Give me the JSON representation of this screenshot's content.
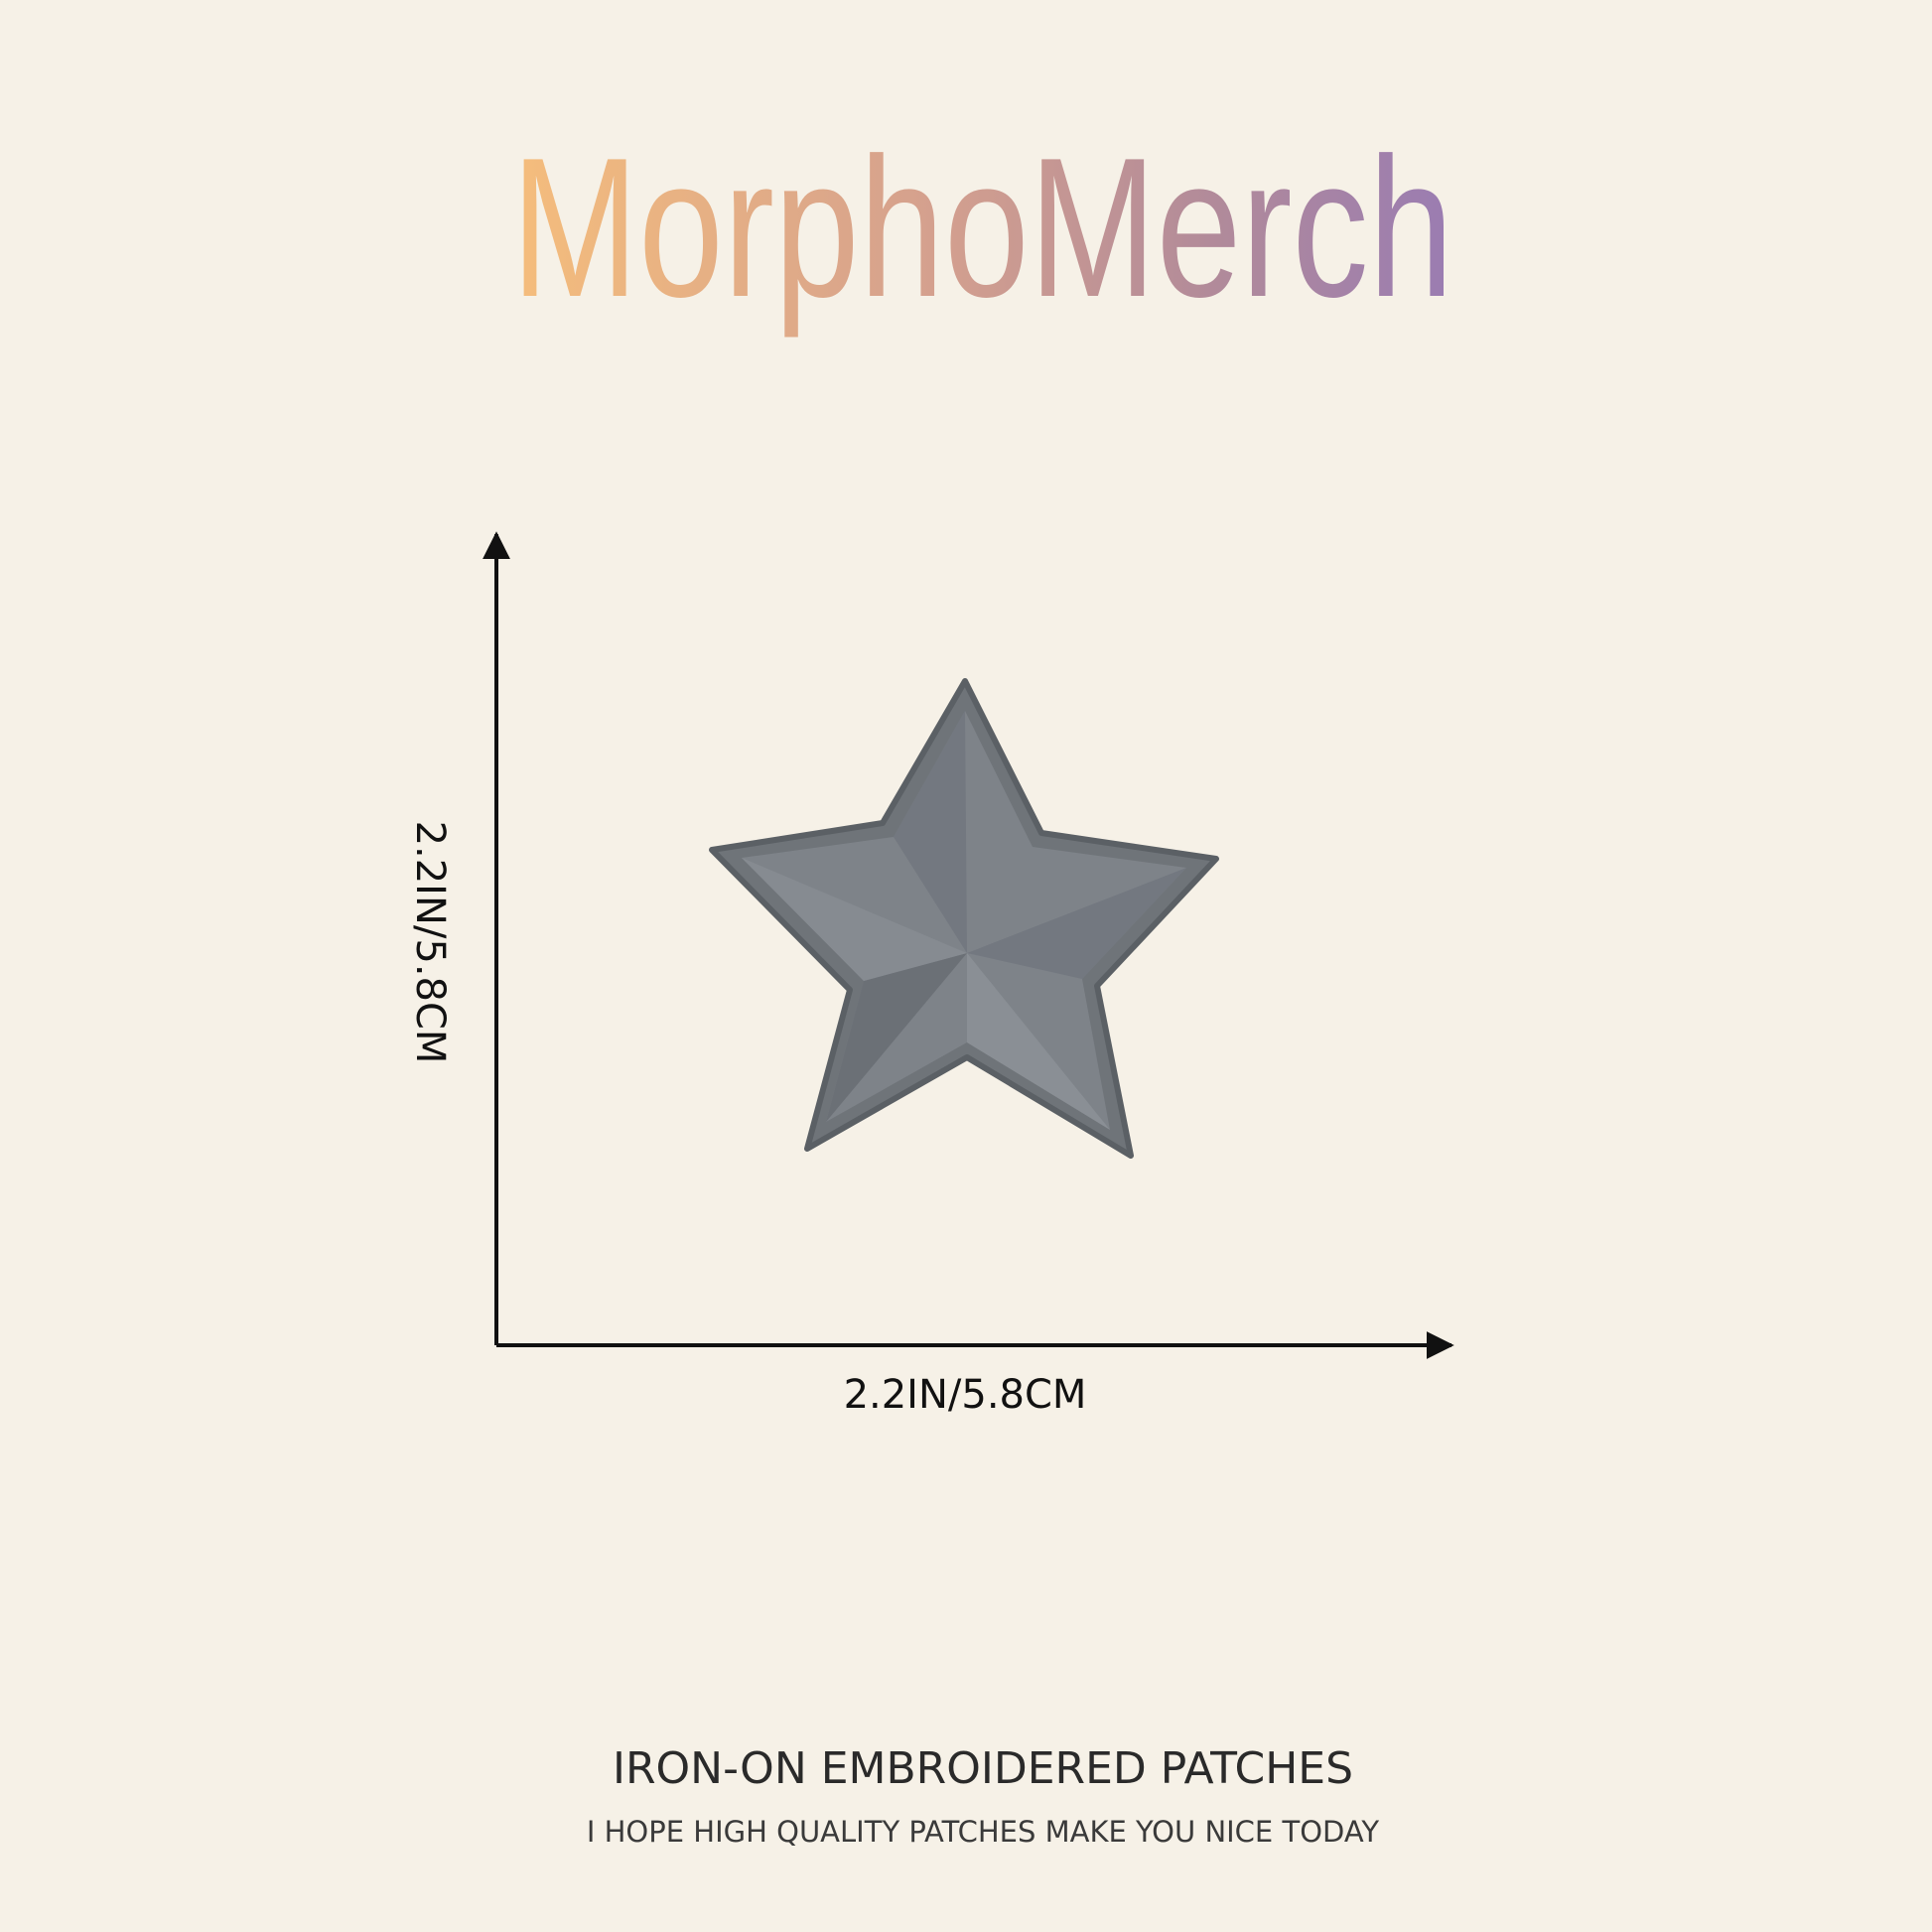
{
  "brand": "MorphoMerch",
  "dimensions": {
    "height": "2.2IN/5.8CM",
    "width": "2.2IN/5.8CM"
  },
  "footer": {
    "title": "IRON-ON EMBROIDERED PATCHES",
    "tagline": "I HOPE HIGH QUALITY PATCHES MAKE YOU NICE TODAY"
  }
}
